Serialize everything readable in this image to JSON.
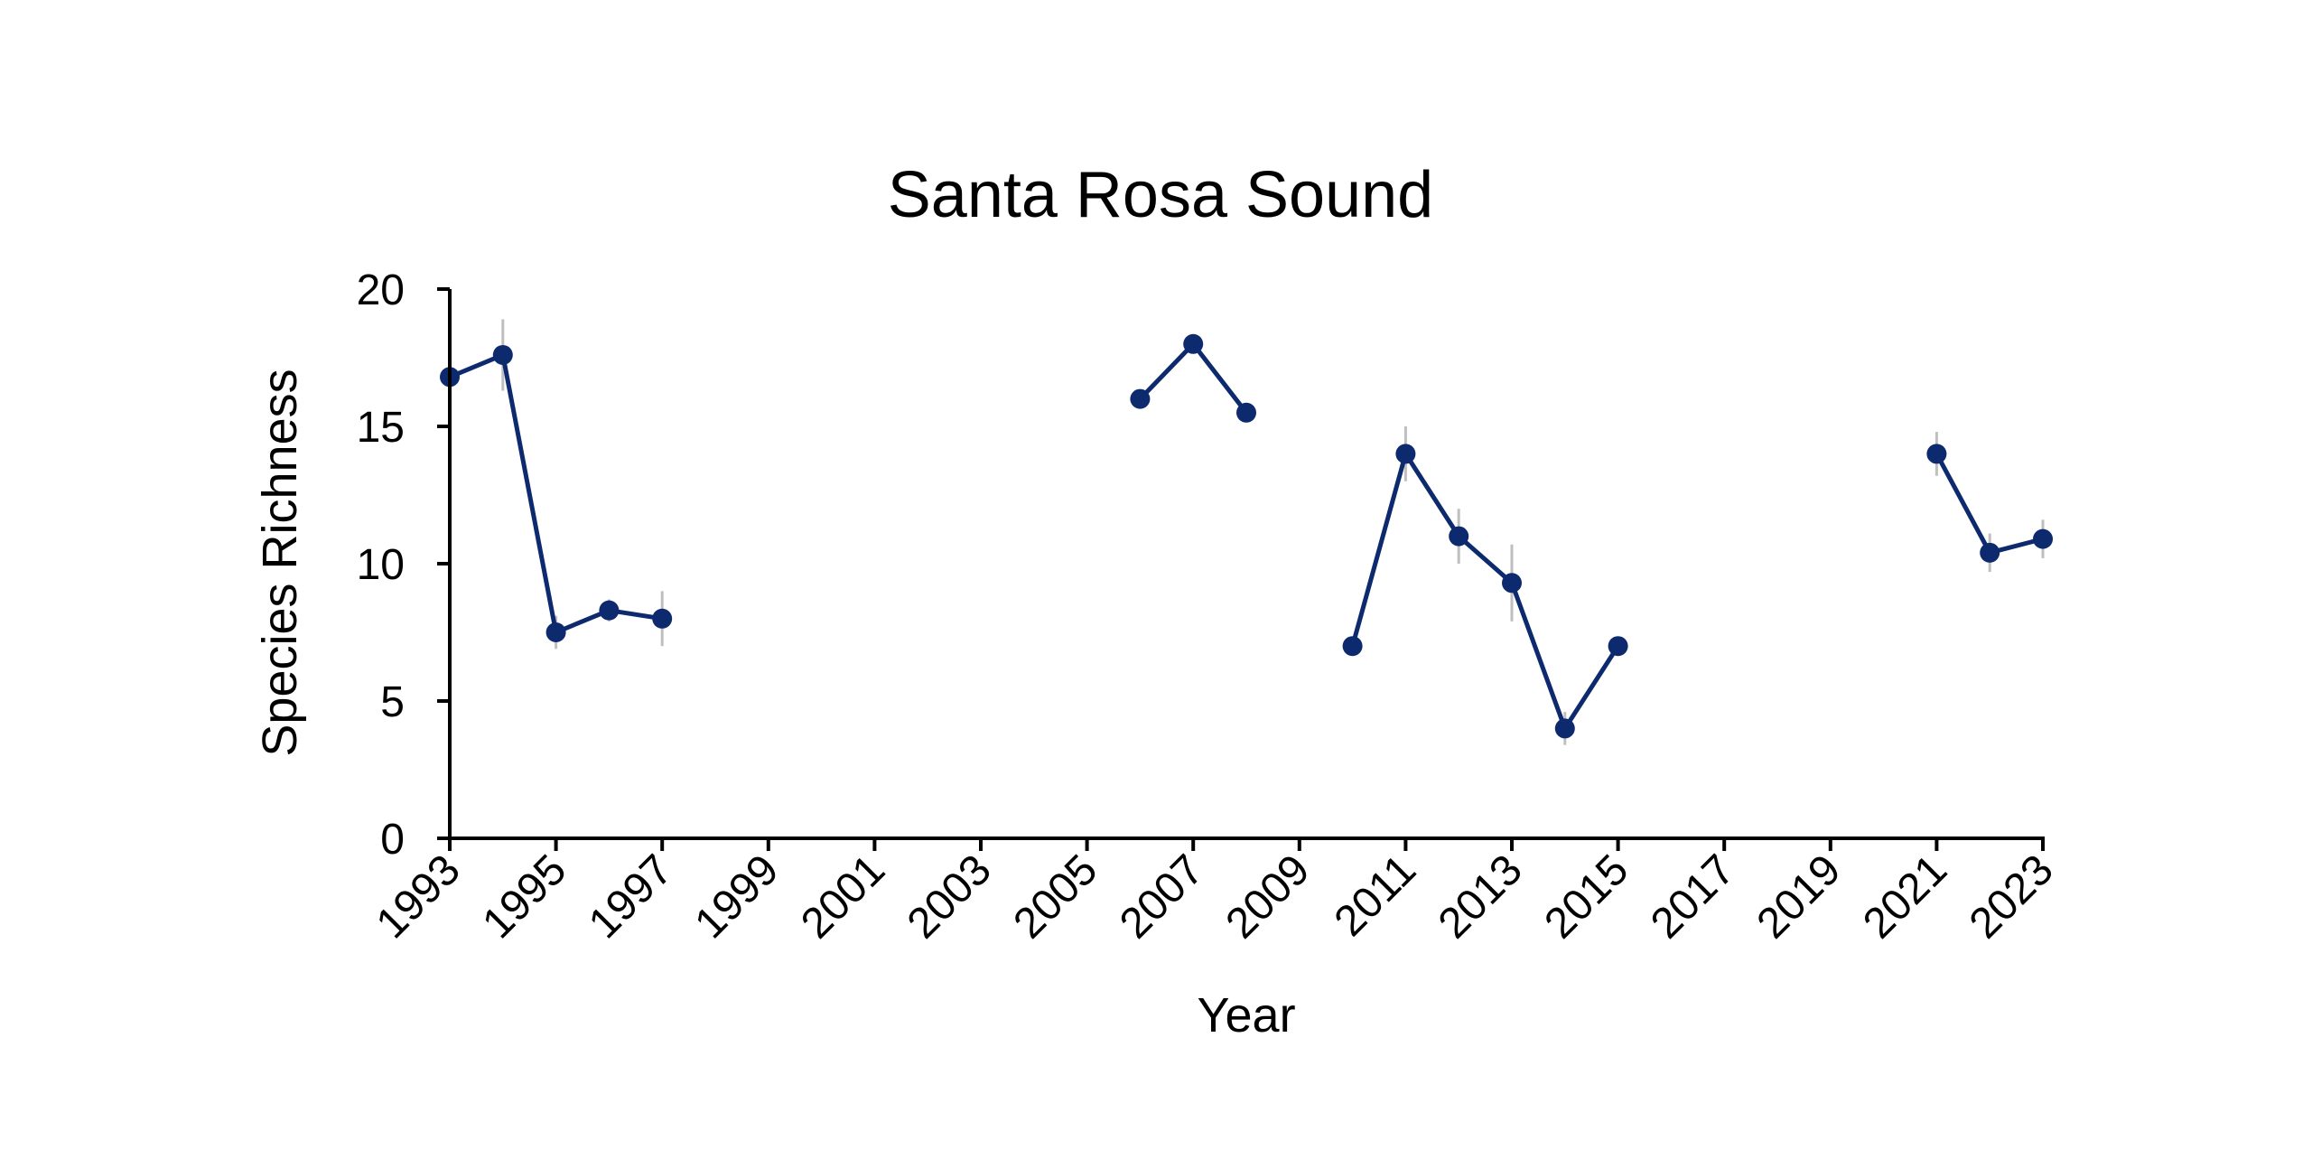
{
  "chart_data": {
    "type": "line",
    "title": "Santa Rosa Sound",
    "xlabel": "Year",
    "ylabel": "Species Richness",
    "xlim": [
      1993,
      2023
    ],
    "ylim": [
      0,
      20
    ],
    "x_ticks": [
      "1993",
      "1995",
      "1997",
      "1999",
      "2001",
      "2003",
      "2005",
      "2007",
      "2009",
      "2011",
      "2013",
      "2015",
      "2017",
      "2019",
      "2021",
      "2023"
    ],
    "y_ticks": [
      "0",
      "5",
      "10",
      "15",
      "20"
    ],
    "grid": false,
    "legend": "none",
    "colors": {
      "series": "#0d2a6e",
      "error_bar": "#bfbfbf",
      "axis": "#000000"
    },
    "series": [
      {
        "segments": [
          {
            "x": [
              1993,
              1994,
              1995,
              1996,
              1997
            ],
            "y": [
              16.8,
              17.6,
              7.5,
              8.3,
              8.0
            ],
            "error": [
              1.5,
              1.3,
              0.6,
              0.4,
              1.0
            ]
          },
          {
            "x": [
              2006,
              2007,
              2008
            ],
            "y": [
              16.0,
              18.0,
              15.5
            ],
            "error": [
              0,
              0,
              0
            ]
          },
          {
            "x": [
              2010,
              2011,
              2012,
              2013,
              2014,
              2015
            ],
            "y": [
              7.0,
              14.0,
              11.0,
              9.3,
              4.0,
              7.0
            ],
            "error": [
              0,
              1.0,
              1.0,
              1.4,
              0.6,
              0
            ]
          },
          {
            "x": [
              2021,
              2022,
              2023
            ],
            "y": [
              14.0,
              10.4,
              10.9
            ],
            "error": [
              0.8,
              0.7,
              0.7
            ]
          }
        ]
      }
    ]
  }
}
